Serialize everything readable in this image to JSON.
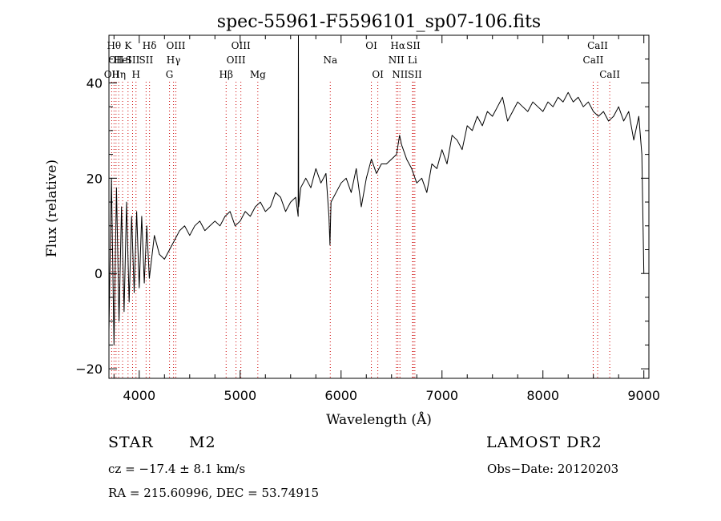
{
  "chart_data": {
    "type": "line",
    "title": "spec-55961-F5596101_sp07-106.fits",
    "xlabel": "Wavelength (Å)",
    "ylabel": "Flux (relative)",
    "xlim": [
      3700,
      9050
    ],
    "ylim": [
      -22,
      50
    ],
    "x_ticks": [
      4000,
      5000,
      6000,
      7000,
      8000,
      9000
    ],
    "x_tick_labels": [
      "4000",
      "5000",
      "6000",
      "7000",
      "8000",
      "9000"
    ],
    "y_ticks": [
      -20,
      0,
      20,
      40
    ],
    "y_tick_labels": [
      "−20",
      "0",
      "20",
      "40"
    ],
    "grid": false,
    "series": [
      {
        "name": "spectrum",
        "x": [
          3700,
          3725,
          3750,
          3775,
          3800,
          3825,
          3850,
          3875,
          3900,
          3925,
          3950,
          3975,
          4000,
          4025,
          4050,
          4075,
          4100,
          4150,
          4200,
          4250,
          4300,
          4350,
          4400,
          4450,
          4500,
          4550,
          4600,
          4650,
          4700,
          4750,
          4800,
          4850,
          4900,
          4950,
          5000,
          5050,
          5100,
          5150,
          5200,
          5250,
          5300,
          5350,
          5400,
          5450,
          5500,
          5550,
          5575,
          5577,
          5580,
          5600,
          5650,
          5700,
          5750,
          5800,
          5850,
          5880,
          5890,
          5900,
          5950,
          6000,
          6050,
          6100,
          6150,
          6200,
          6250,
          6300,
          6350,
          6400,
          6450,
          6500,
          6550,
          6580,
          6600,
          6650,
          6700,
          6750,
          6800,
          6850,
          6900,
          6950,
          7000,
          7050,
          7100,
          7150,
          7200,
          7250,
          7300,
          7350,
          7400,
          7450,
          7500,
          7550,
          7600,
          7650,
          7700,
          7750,
          7800,
          7850,
          7900,
          7950,
          8000,
          8050,
          8100,
          8150,
          8200,
          8250,
          8300,
          8350,
          8400,
          8450,
          8500,
          8550,
          8600,
          8650,
          8700,
          8750,
          8800,
          8850,
          8900,
          8950,
          8980,
          9000
        ],
        "values": [
          -12,
          20,
          -15,
          18,
          -10,
          14,
          -8,
          15,
          -6,
          12,
          -4,
          13,
          -3,
          12,
          -2,
          10,
          -1,
          8,
          4,
          3,
          5,
          7,
          9,
          10,
          8,
          10,
          11,
          9,
          10,
          11,
          10,
          12,
          13,
          10,
          11,
          13,
          12,
          14,
          15,
          13,
          14,
          17,
          16,
          13,
          15,
          16,
          12,
          50,
          14,
          18,
          20,
          18,
          22,
          19,
          21,
          12,
          6,
          15,
          17,
          19,
          20,
          17,
          22,
          14,
          20,
          24,
          21,
          23,
          23,
          24,
          25,
          29,
          27,
          24,
          22,
          19,
          20,
          17,
          23,
          22,
          26,
          23,
          29,
          28,
          26,
          31,
          30,
          33,
          31,
          34,
          33,
          35,
          37,
          32,
          34,
          36,
          35,
          34,
          36,
          35,
          34,
          36,
          35,
          37,
          36,
          38,
          36,
          37,
          35,
          36,
          34,
          33,
          34,
          32,
          33,
          35,
          32,
          34,
          28,
          33,
          25,
          0
        ]
      }
    ],
    "line_markers": [
      {
        "wavelength": 3727,
        "row": 2,
        "label": "OII"
      },
      {
        "wavelength": 3750,
        "row": 0,
        "label": "Hθ"
      },
      {
        "wavelength": 3770,
        "row": 1,
        "label": "OII"
      },
      {
        "wavelength": 3797,
        "row": 2,
        "label": "Hη"
      },
      {
        "wavelength": 3835,
        "row": 1,
        "label": "HeI"
      },
      {
        "wavelength": 3889,
        "row": 0,
        "label": "K"
      },
      {
        "wavelength": 3934,
        "row": 1,
        "label": "SII"
      },
      {
        "wavelength": 3968,
        "row": 2,
        "label": "H"
      },
      {
        "wavelength": 4068,
        "row": 1,
        "label": "SII"
      },
      {
        "wavelength": 4102,
        "row": 0,
        "label": "Hδ"
      },
      {
        "wavelength": 4300,
        "row": 2,
        "label": "G"
      },
      {
        "wavelength": 4340,
        "row": 1,
        "label": "Hγ"
      },
      {
        "wavelength": 4363,
        "row": 0,
        "label": "OIII"
      },
      {
        "wavelength": 4861,
        "row": 2,
        "label": "Hβ"
      },
      {
        "wavelength": 4959,
        "row": 1,
        "label": "OIII"
      },
      {
        "wavelength": 5007,
        "row": 0,
        "label": "OIII"
      },
      {
        "wavelength": 5175,
        "row": 2,
        "label": "Mg"
      },
      {
        "wavelength": 5893,
        "row": 1,
        "label": "Na"
      },
      {
        "wavelength": 6300,
        "row": 0,
        "label": "OI"
      },
      {
        "wavelength": 6364,
        "row": 2,
        "label": "OI"
      },
      {
        "wavelength": 6548,
        "row": 1,
        "label": "NII"
      },
      {
        "wavelength": 6563,
        "row": 0,
        "label": "Hα"
      },
      {
        "wavelength": 6583,
        "row": 2,
        "label": "NII"
      },
      {
        "wavelength": 6708,
        "row": 1,
        "label": "Li"
      },
      {
        "wavelength": 6716,
        "row": 0,
        "label": "SII"
      },
      {
        "wavelength": 6731,
        "row": 2,
        "label": "SII"
      },
      {
        "wavelength": 8498,
        "row": 1,
        "label": "CaII"
      },
      {
        "wavelength": 8542,
        "row": 0,
        "label": "CaII"
      },
      {
        "wavelength": 8662,
        "row": 2,
        "label": "CaII"
      }
    ],
    "colors": {
      "spectrum": "#000000",
      "line_markers": "#cc0000",
      "axes": "#000000"
    }
  },
  "info": {
    "object_class": "STAR",
    "subclass": "M2",
    "survey": "LAMOST DR2",
    "redshift": "cz = −17.4 ± 8.1 km/s",
    "obs_date": "Obs−Date: 20120203",
    "coords": "RA = 215.60996, DEC =  53.74915"
  }
}
